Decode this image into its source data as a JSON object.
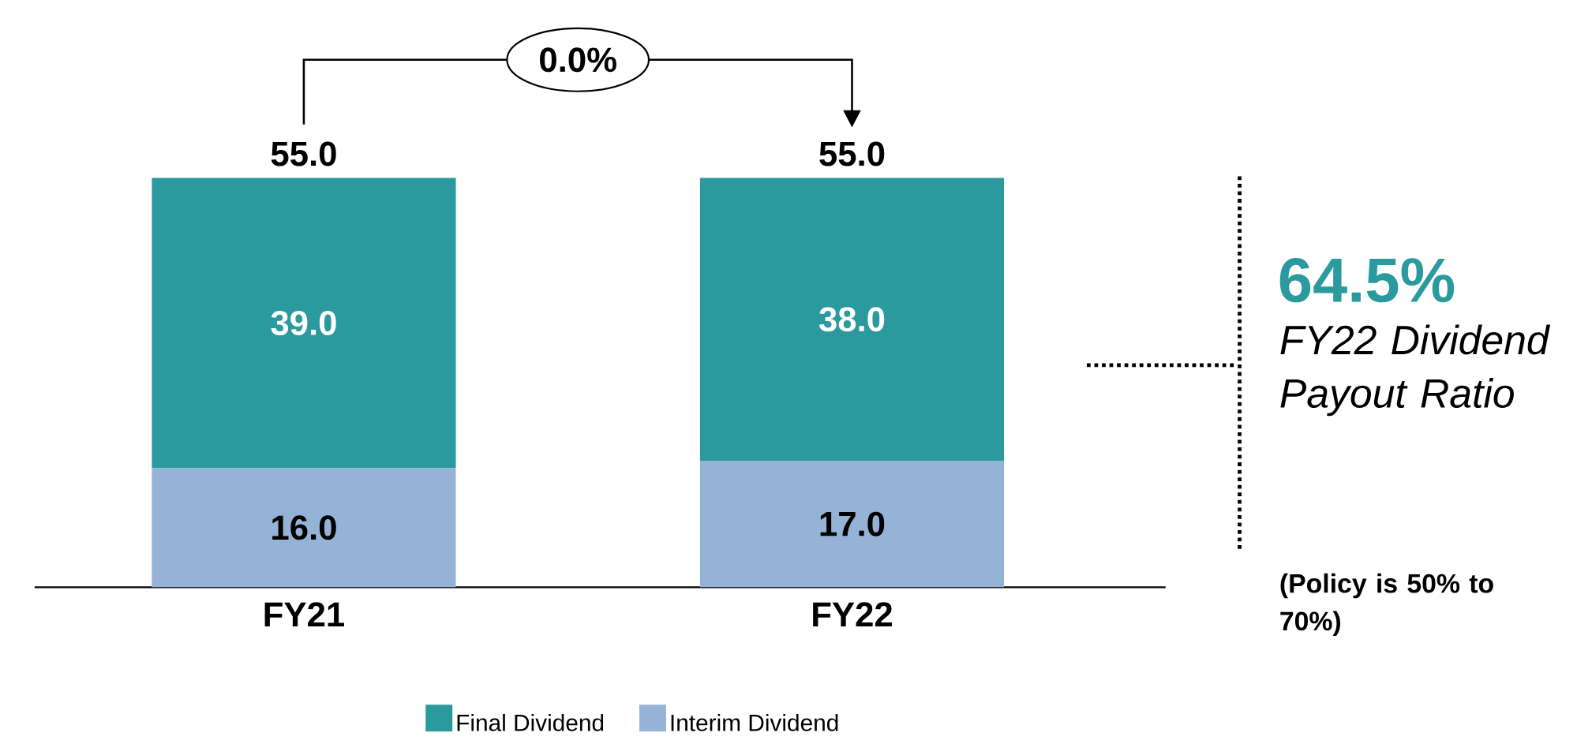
{
  "chart_data": {
    "type": "bar",
    "stacked": true,
    "categories": [
      "FY21",
      "FY22"
    ],
    "series": [
      {
        "name": "Interim Dividend",
        "color": "#95b3d7",
        "values": [
          16.0,
          17.0
        ],
        "value_labels": [
          "16.0",
          "17.0"
        ]
      },
      {
        "name": "Final Dividend",
        "color": "#2a9a9e",
        "values": [
          39.0,
          38.0
        ],
        "value_labels": [
          "39.0",
          "38.0"
        ]
      }
    ],
    "totals": [
      "55.0",
      "55.0"
    ],
    "annotations": [
      "0.0%",
      "64.5%",
      "FY22 Dividend Payout Ratio",
      "(Policy is 50% to 70%)"
    ],
    "legend": "bottom"
  }
}
